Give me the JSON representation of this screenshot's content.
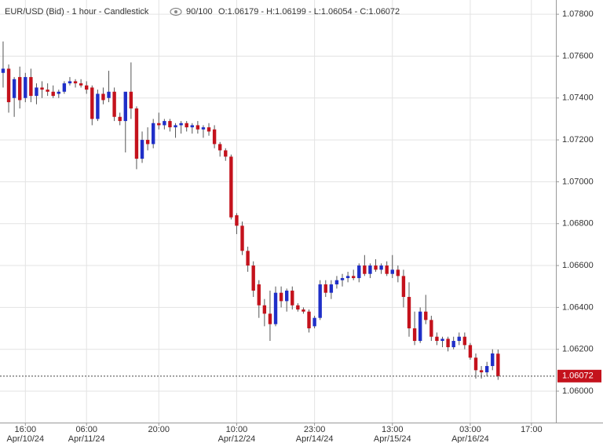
{
  "chart_data": {
    "type": "candlestick",
    "title": "EUR/USD (Bid) - 1 hour - Candlestick",
    "zoom": "90/100",
    "ohlc_text": "O:1.06179 - H:1.06199 - L:1.06054 - C:1.06072",
    "up_color": "#1f2fc8",
    "down_color": "#c4121c",
    "grid": true,
    "xlim": [
      -0.56,
      99.4
    ],
    "xticks": [
      {
        "value": 4,
        "label": "16:00",
        "date": "Apr/10/24"
      },
      {
        "value": 15,
        "label": "06:00",
        "date": "Apr/11/24"
      },
      {
        "value": 28,
        "label": "20:00"
      },
      {
        "value": 42,
        "label": "10:00",
        "date": "Apr/12/24"
      },
      {
        "value": 56,
        "label": "23:00",
        "date": "Apr/14/24"
      },
      {
        "value": 70,
        "label": "13:00",
        "date": "Apr/15/24"
      },
      {
        "value": 84,
        "label": "03:00",
        "date": "Apr/16/24"
      },
      {
        "value": 95,
        "label": "17:00"
      }
    ],
    "ylim": [
      1.0585,
      1.07868
    ],
    "yticks": [
      {
        "value": 1.06,
        "label": "1.06000"
      },
      {
        "value": 1.062,
        "label": "1.06200"
      },
      {
        "value": 1.064,
        "label": "1.06400"
      },
      {
        "value": 1.066,
        "label": "1.06600"
      },
      {
        "value": 1.068,
        "label": "1.06800"
      },
      {
        "value": 1.07,
        "label": "1.07000"
      },
      {
        "value": 1.072,
        "label": "1.07200"
      },
      {
        "value": 1.074,
        "label": "1.07400"
      },
      {
        "value": 1.076,
        "label": "1.07600"
      },
      {
        "value": 1.078,
        "label": "1.07800"
      }
    ],
    "last_price": {
      "value": 1.06072,
      "label": "1.06072"
    },
    "open": [
      1.0752,
      1.0754,
      1.074,
      1.075,
      1.074,
      1.075,
      1.0741,
      1.0745,
      1.0744,
      1.0743,
      1.0742,
      1.0743,
      1.0747,
      1.0748,
      1.0747,
      1.0746,
      1.0745,
      1.073,
      1.0742,
      1.074,
      1.0743,
      1.0731,
      1.0729,
      1.0743,
      1.0735,
      1.0711,
      1.072,
      1.0718,
      1.0728,
      1.0727,
      1.0729,
      1.0726,
      1.0727,
      1.0728,
      1.0726,
      1.0727,
      1.0725,
      1.0726,
      1.0725,
      1.0718,
      1.0715,
      1.0712,
      1.0684,
      1.0679,
      1.0667,
      1.066,
      1.0651,
      1.0641,
      1.0637,
      1.0632,
      1.0647,
      1.0643,
      1.0648,
      1.0641,
      1.0639,
      1.0638,
      1.0631,
      1.0635,
      1.0651,
      1.0647,
      1.0651,
      1.0653,
      1.0654,
      1.0655,
      1.0654,
      1.066,
      1.0656,
      1.066,
      1.0658,
      1.066,
      1.0656,
      1.0658,
      1.0655,
      1.0645,
      1.063,
      1.0624,
      1.0638,
      1.0634,
      1.0626,
      1.0624,
      1.0625,
      1.0621,
      1.0624,
      1.0626,
      1.0622,
      1.0616,
      1.061,
      1.0609,
      1.0612,
      1.06179
    ],
    "high": [
      1.0767,
      1.0756,
      1.075,
      1.0755,
      1.0752,
      1.0754,
      1.0747,
      1.0748,
      1.0747,
      1.0746,
      1.0744,
      1.0748,
      1.075,
      1.0749,
      1.0749,
      1.0748,
      1.0746,
      1.0744,
      1.0745,
      1.0753,
      1.0745,
      1.0733,
      1.0742,
      1.0757,
      1.0736,
      1.0724,
      1.0726,
      1.073,
      1.0733,
      1.073,
      1.073,
      1.0728,
      1.0729,
      1.0729,
      1.0728,
      1.0729,
      1.0727,
      1.0728,
      1.0727,
      1.0719,
      1.0716,
      1.0713,
      1.0685,
      1.0681,
      1.0669,
      1.0662,
      1.0653,
      1.0644,
      1.0648,
      1.065,
      1.065,
      1.0649,
      1.065,
      1.0642,
      1.064,
      1.0639,
      1.0636,
      1.0653,
      1.0653,
      1.0653,
      1.0655,
      1.0656,
      1.0657,
      1.0658,
      1.0661,
      1.0665,
      1.0661,
      1.0663,
      1.0661,
      1.0662,
      1.0665,
      1.066,
      1.0658,
      1.0652,
      1.0638,
      1.064,
      1.0646,
      1.0636,
      1.0628,
      1.0626,
      1.0626,
      1.0626,
      1.0628,
      1.0628,
      1.0623,
      1.0618,
      1.0612,
      1.0614,
      1.062,
      1.06199
    ],
    "low": [
      1.0745,
      1.0733,
      1.0731,
      1.0735,
      1.0738,
      1.0738,
      1.0737,
      1.074,
      1.0741,
      1.074,
      1.074,
      1.0742,
      1.0746,
      1.0745,
      1.0745,
      1.0742,
      1.0727,
      1.0729,
      1.0737,
      1.0738,
      1.0729,
      1.0727,
      1.0714,
      1.073,
      1.0706,
      1.0709,
      1.0715,
      1.0716,
      1.0725,
      1.0725,
      1.0724,
      1.0721,
      1.0723,
      1.0724,
      1.0723,
      1.0723,
      1.0721,
      1.0722,
      1.0716,
      1.0712,
      1.071,
      1.0682,
      1.0675,
      1.0665,
      1.0657,
      1.0645,
      1.0635,
      1.0631,
      1.0624,
      1.0631,
      1.064,
      1.0638,
      1.0639,
      1.0638,
      1.0637,
      1.0628,
      1.063,
      1.0634,
      1.0645,
      1.0644,
      1.0649,
      1.065,
      1.0652,
      1.0653,
      1.0652,
      1.0655,
      1.0654,
      1.0657,
      1.0656,
      1.0655,
      1.0654,
      1.0652,
      1.064,
      1.0626,
      1.0622,
      1.0623,
      1.0632,
      1.0624,
      1.0622,
      1.0621,
      1.0619,
      1.062,
      1.0622,
      1.062,
      1.0615,
      1.0606,
      1.0606,
      1.0607,
      1.061,
      1.06054
    ],
    "close": [
      1.0754,
      1.0738,
      1.0749,
      1.0739,
      1.075,
      1.0741,
      1.0745,
      1.0744,
      1.0743,
      1.0741,
      1.0743,
      1.0747,
      1.0748,
      1.0747,
      1.0746,
      1.0744,
      1.073,
      1.0742,
      1.0739,
      1.0743,
      1.0731,
      1.0729,
      1.0743,
      1.0735,
      1.0711,
      1.072,
      1.0718,
      1.0728,
      1.0727,
      1.0729,
      1.0726,
      1.0727,
      1.0728,
      1.0726,
      1.0727,
      1.0725,
      1.0726,
      1.0724,
      1.0718,
      1.0715,
      1.0712,
      1.0683,
      1.0679,
      1.0667,
      1.066,
      1.0648,
      1.0641,
      1.0637,
      1.0632,
      1.0647,
      1.0643,
      1.0648,
      1.0641,
      1.0639,
      1.0638,
      1.063,
      1.0635,
      1.0651,
      1.0647,
      1.0651,
      1.0653,
      1.0654,
      1.0655,
      1.0654,
      1.066,
      1.0656,
      1.066,
      1.0658,
      1.066,
      1.0656,
      1.0658,
      1.0655,
      1.0645,
      1.063,
      1.0624,
      1.0638,
      1.0634,
      1.0626,
      1.0624,
      1.0625,
      1.0621,
      1.0624,
      1.0626,
      1.0622,
      1.0616,
      1.061,
      1.0609,
      1.0612,
      1.0618,
      1.06072
    ]
  }
}
